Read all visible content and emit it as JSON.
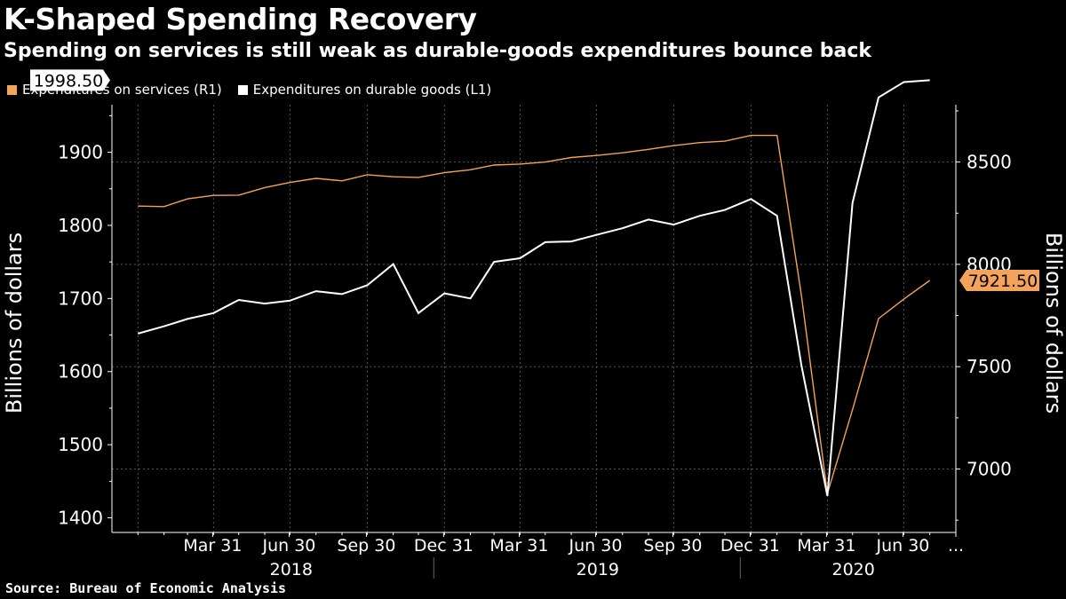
{
  "title": "K-Shaped Spending Recovery",
  "subtitle": "Spending on services is still weak as durable-goods expenditures bounce back",
  "source": "Source: Bureau of Economic Analysis",
  "colors": {
    "background": "#000000",
    "services": "#f5a25a",
    "durable": "#ffffff",
    "grid": "#555555"
  },
  "legend": [
    {
      "label": "Expenditures on services (R1)",
      "color": "#f5a25a"
    },
    {
      "label": "Expenditures on durable goods (L1)",
      "color": "#ffffff"
    }
  ],
  "chart_data": {
    "type": "line",
    "left_axis": {
      "label": "Billions of dollars",
      "ticks": [
        1400,
        1500,
        1600,
        1700,
        1800,
        1900
      ],
      "range": [
        1380,
        1965
      ]
    },
    "right_axis": {
      "label": "Billions of dollars",
      "ticks": [
        7000,
        7500,
        8000,
        8500
      ],
      "range": [
        6690,
        8780
      ]
    },
    "x_month_ticks": [
      "Mar 31",
      "Jun 30",
      "Sep 30",
      "Dec 31",
      "Mar 31",
      "Jun 30",
      "Sep 30",
      "Dec 31",
      "Mar 31",
      "Jun 30",
      "..."
    ],
    "x_year_labels": [
      "2018",
      "2019",
      "2020"
    ],
    "series": [
      {
        "name": "Expenditures on services (R1)",
        "axis": "right",
        "color": "#f5a25a",
        "last_value_label": "7921.50",
        "points": [
          [
            "2018-01-01",
            8285
          ],
          [
            "2018-02-01",
            8282
          ],
          [
            "2018-03-01",
            8320
          ],
          [
            "2018-04-01",
            8337
          ],
          [
            "2018-05-01",
            8338
          ],
          [
            "2018-06-01",
            8375
          ],
          [
            "2018-07-01",
            8400
          ],
          [
            "2018-08-01",
            8420
          ],
          [
            "2018-09-01",
            8408
          ],
          [
            "2018-10-01",
            8438
          ],
          [
            "2018-11-01",
            8428
          ],
          [
            "2018-12-01",
            8425
          ],
          [
            "2019-01-01",
            8448
          ],
          [
            "2019-02-01",
            8462
          ],
          [
            "2019-03-01",
            8485
          ],
          [
            "2019-04-01",
            8490
          ],
          [
            "2019-05-01",
            8500
          ],
          [
            "2019-06-01",
            8522
          ],
          [
            "2019-07-01",
            8532
          ],
          [
            "2019-08-01",
            8545
          ],
          [
            "2019-09-01",
            8562
          ],
          [
            "2019-10-01",
            8580
          ],
          [
            "2019-11-01",
            8595
          ],
          [
            "2019-12-01",
            8602
          ],
          [
            "2020-01-01",
            8630
          ],
          [
            "2020-02-01",
            8630
          ],
          [
            "2020-03-01",
            7850
          ],
          [
            "2020-04-01",
            6880
          ],
          [
            "2020-05-01",
            7290
          ],
          [
            "2020-06-01",
            7735
          ],
          [
            "2020-07-01",
            7830
          ],
          [
            "2020-08-01",
            7921.5
          ]
        ]
      },
      {
        "name": "Expenditures on durable goods (L1)",
        "axis": "left",
        "color": "#ffffff",
        "last_value_label": "1998.50",
        "points": [
          [
            "2018-01-01",
            1652
          ],
          [
            "2018-02-01",
            1662
          ],
          [
            "2018-03-01",
            1672
          ],
          [
            "2018-04-01",
            1680
          ],
          [
            "2018-05-01",
            1698
          ],
          [
            "2018-06-01",
            1693
          ],
          [
            "2018-07-01",
            1697
          ],
          [
            "2018-08-01",
            1710
          ],
          [
            "2018-09-01",
            1706
          ],
          [
            "2018-10-01",
            1718
          ],
          [
            "2018-11-01",
            1747
          ],
          [
            "2018-12-01",
            1680
          ],
          [
            "2019-01-01",
            1707
          ],
          [
            "2019-02-01",
            1700
          ],
          [
            "2019-03-01",
            1750
          ],
          [
            "2019-04-01",
            1755
          ],
          [
            "2019-05-01",
            1777
          ],
          [
            "2019-06-01",
            1778
          ],
          [
            "2019-07-01",
            1787
          ],
          [
            "2019-08-01",
            1796
          ],
          [
            "2019-09-01",
            1808
          ],
          [
            "2019-10-01",
            1801
          ],
          [
            "2019-11-01",
            1813
          ],
          [
            "2019-12-01",
            1821
          ],
          [
            "2020-01-01",
            1836
          ],
          [
            "2020-02-01",
            1813
          ],
          [
            "2020-03-01",
            1609
          ],
          [
            "2020-04-01",
            1430
          ],
          [
            "2020-05-01",
            1831
          ],
          [
            "2020-06-01",
            1975
          ],
          [
            "2020-07-01",
            1996
          ],
          [
            "2020-08-01",
            1998.5
          ]
        ]
      }
    ]
  }
}
